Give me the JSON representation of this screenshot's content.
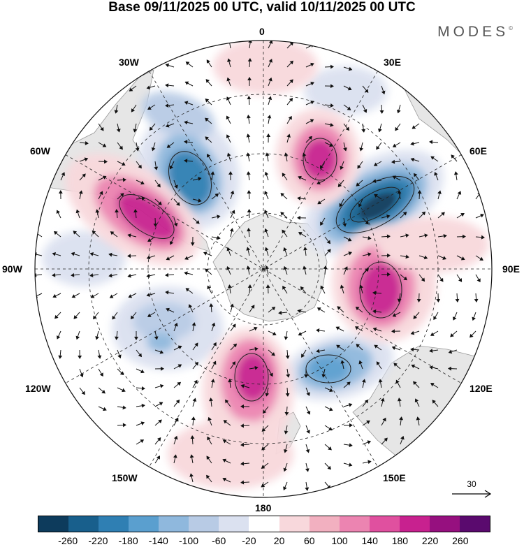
{
  "title": "Base 09/11/2025 00 UTC, valid 10/11/2025 00 UTC",
  "brand": {
    "text": "MODES",
    "mark": "©"
  },
  "longitude_labels": {
    "north": "0",
    "south": "180",
    "west": "90W",
    "east": "90E",
    "w30": "30W",
    "e30": "30E",
    "w60": "60W",
    "e60": "60E",
    "w120": "120W",
    "e120": "120E",
    "w150": "150W",
    "e150": "150E"
  },
  "reference_vector": {
    "value": "30",
    "icon": "arrow-right-icon"
  },
  "colorbar": {
    "colors": [
      "#0d3b5c",
      "#185f8c",
      "#2f7fb3",
      "#5a9fcf",
      "#8fb8dd",
      "#b8cbe5",
      "#dbe1f0",
      "#ffffff",
      "#f8d8dc",
      "#f2b0c0",
      "#ec84b1",
      "#e0509f",
      "#c8218f",
      "#96107f",
      "#5a0a6e"
    ],
    "labels": [
      "-260",
      "-220",
      "-180",
      "-140",
      "-100",
      "-60",
      "-20",
      "20",
      "60",
      "100",
      "140",
      "180",
      "220",
      "260"
    ]
  }
}
